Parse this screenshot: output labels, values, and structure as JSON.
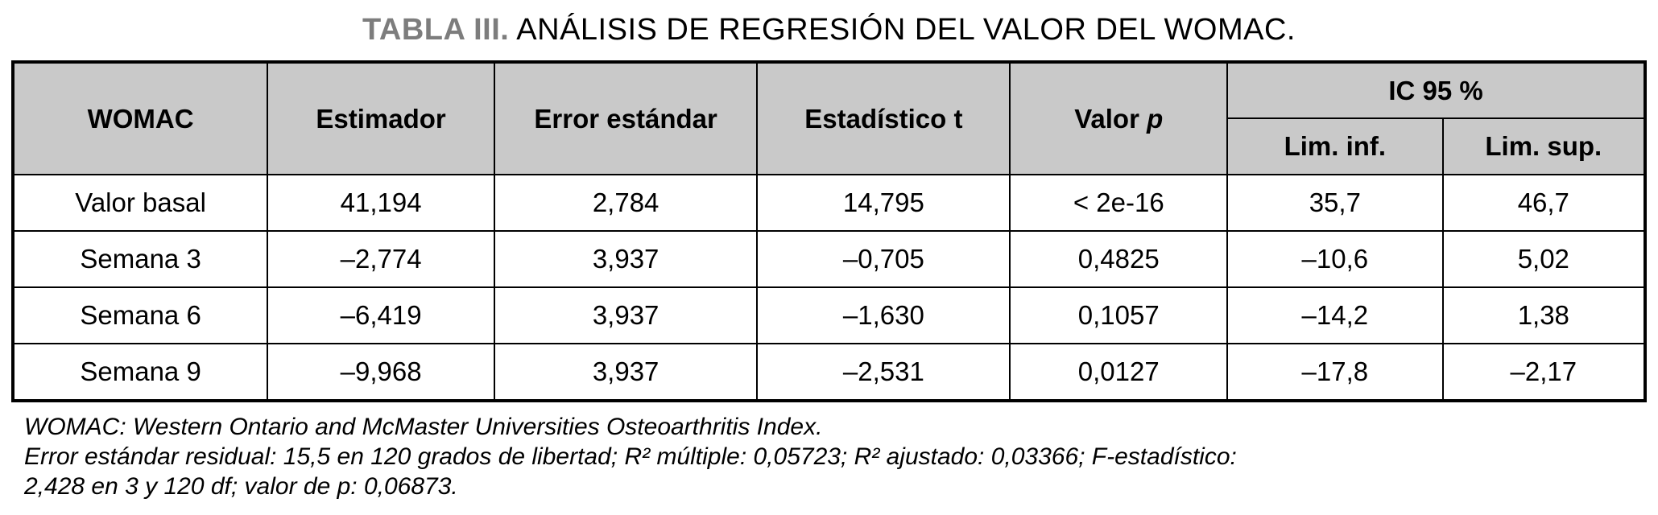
{
  "title": {
    "label": "TABLA III.",
    "text": "ANÁLISIS DE REGRESIÓN DEL VALOR DEL WOMAC."
  },
  "colors": {
    "header_bg": "#c9c9c9",
    "title_label_gray": "#7d7d7d",
    "border": "#000000"
  },
  "table": {
    "headers": {
      "womac": "WOMAC",
      "estimador": "Estimador",
      "error_estandar": "Error estándar",
      "estadistico_t": "Estadístico t",
      "valor_p_prefix": "Valor ",
      "valor_p_italic": "p",
      "ic95": "IC 95 %",
      "lim_inf": "Lim. inf.",
      "lim_sup": "Lim. sup."
    },
    "rows": [
      [
        "Valor basal",
        "41,194",
        "2,784",
        "14,795",
        "< 2e-16",
        "35,7",
        "46,7"
      ],
      [
        "Semana 3",
        "–2,774",
        "3,937",
        "–0,705",
        "0,4825",
        "–10,6",
        "5,02"
      ],
      [
        "Semana 6",
        "–6,419",
        "3,937",
        "–1,630",
        "0,1057",
        "–14,2",
        "1,38"
      ],
      [
        "Semana 9",
        "–9,968",
        "3,937",
        "–2,531",
        "0,0127",
        "–17,8",
        "–2,17"
      ]
    ]
  },
  "footnotes": [
    "WOMAC: Western Ontario and McMaster Universities Osteoarthritis Index.",
    "Error estándar residual: 15,5 en 120 grados de libertad; R² múltiple: 0,05723; R² ajustado: 0,03366; F-estadístico:",
    "2,428 en 3 y 120 df; valor de p: 0,06873."
  ]
}
